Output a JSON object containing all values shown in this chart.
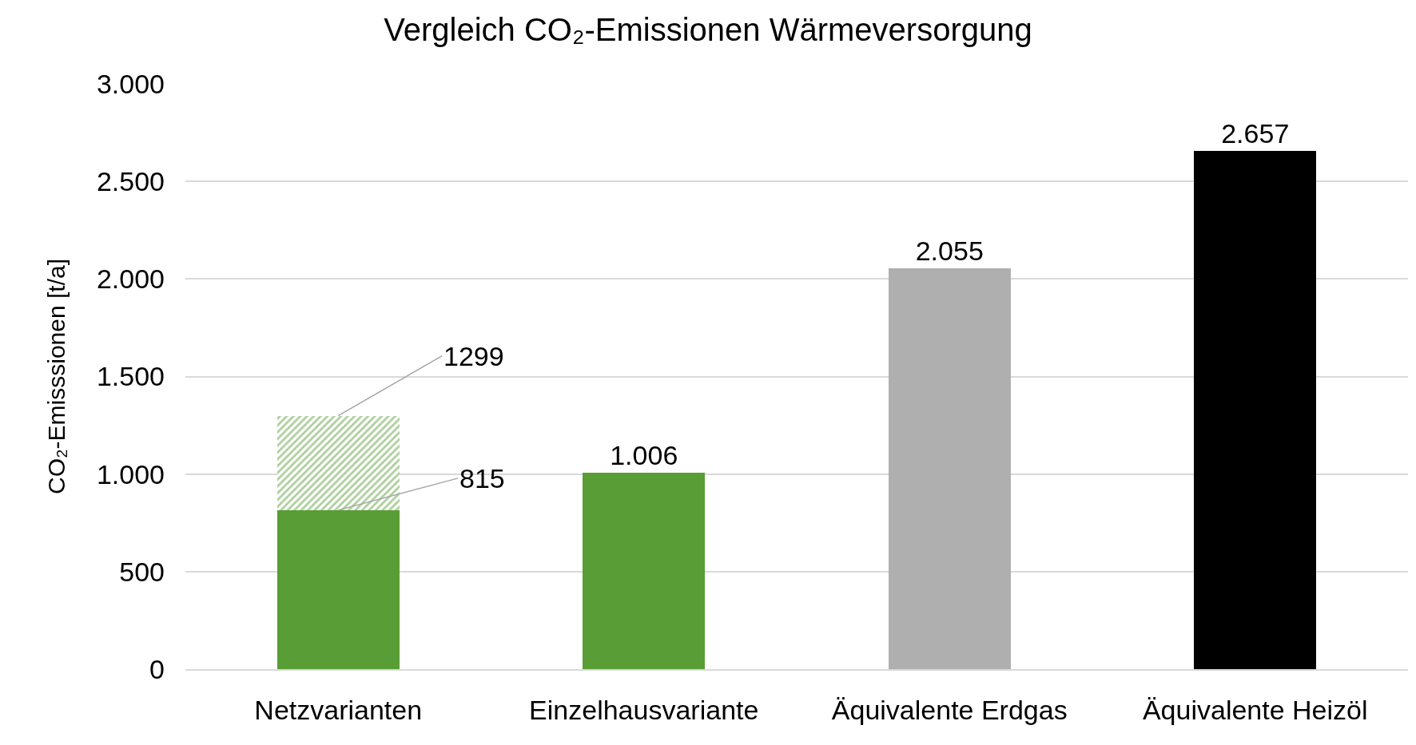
{
  "chart_data": {
    "type": "bar",
    "title": "Vergleich CO₂-Emissionen Wärmeversorgung",
    "ylabel": "CO₂-Emisssionen [t/a]",
    "categories": [
      "Netzvarianten",
      "Einzelhausvariante",
      "Äquivalente Erdgas",
      "Äquivalente Heizöl"
    ],
    "stacked": true,
    "series": [
      {
        "colors": [
          "#589d35",
          "#589d35",
          "#afafaf",
          "#000000"
        ],
        "values": [
          815,
          1006,
          2055,
          2657
        ],
        "value_labels": [
          null,
          "1.006",
          "2.055",
          "2.657"
        ]
      },
      {
        "color": "#589d35",
        "values": [
          484,
          null,
          null,
          null
        ]
      }
    ],
    "annotations": [
      {
        "text": "1299",
        "x": "Netzvarianten",
        "y": 1299
      },
      {
        "text": "815",
        "x": "Netzvarianten",
        "y": 815
      }
    ],
    "ylim": [
      0,
      3000
    ],
    "yticks": [
      0,
      {
        "value": 500,
        "label": "500"
      },
      {
        "value": 1000,
        "label": "1.000"
      },
      {
        "value": 1500,
        "label": "1.500"
      },
      {
        "value": 2000,
        "label": "2.000"
      },
      {
        "value": 2500,
        "label": "2.500"
      },
      {
        "value": 3000,
        "label": "3.000"
      }
    ],
    "grid": "y"
  }
}
